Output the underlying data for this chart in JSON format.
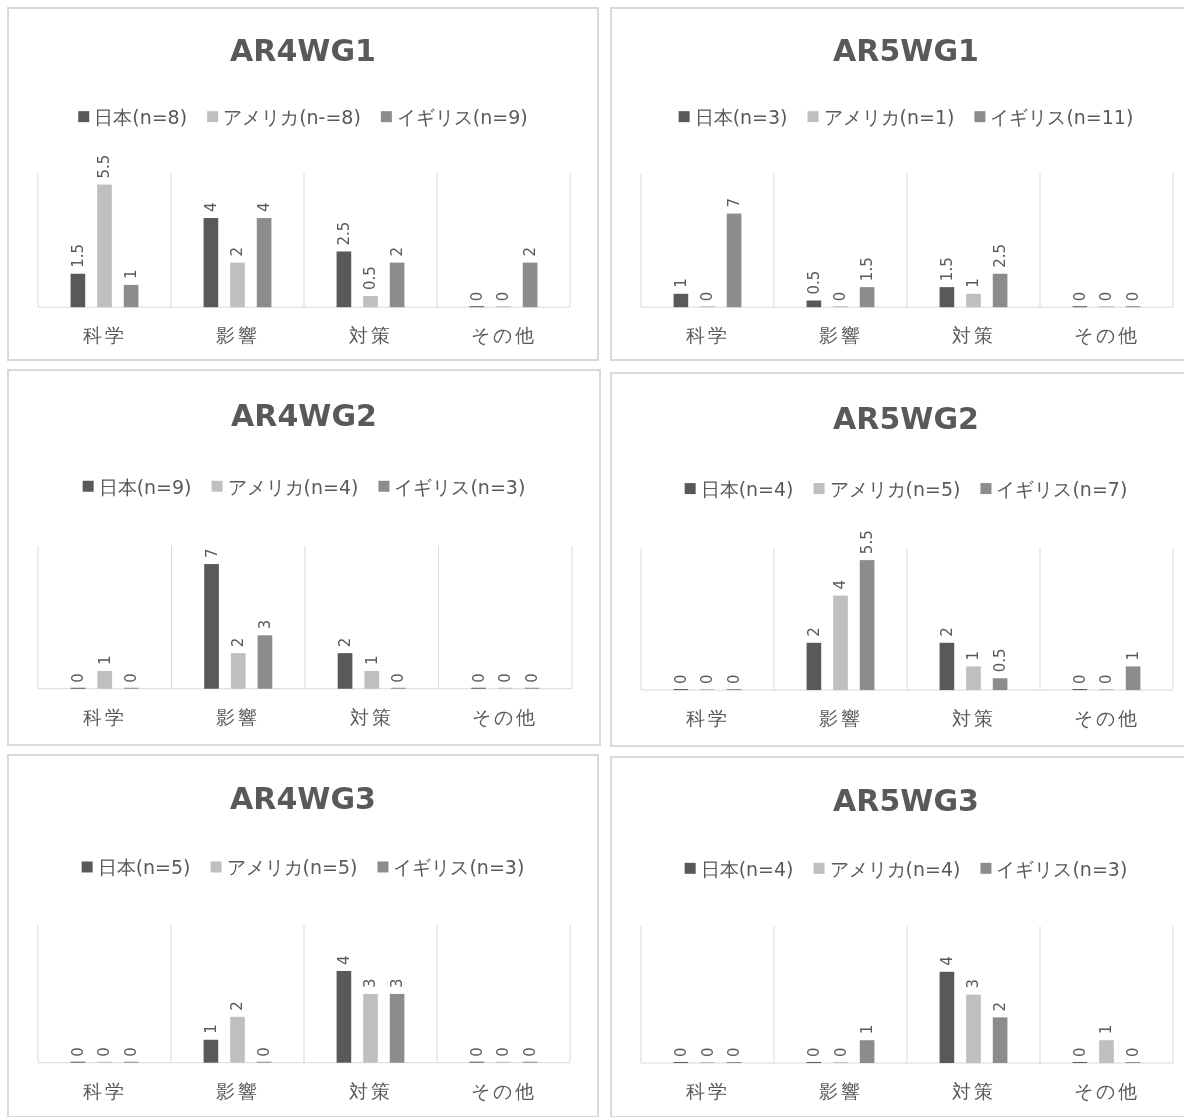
{
  "chart_data": [
    {
      "type": "bar",
      "title": "AR4WG1",
      "categories": [
        "科学",
        "影響",
        "対策",
        "その他"
      ],
      "ylim": [
        0,
        6
      ],
      "grid": "x",
      "legend": "top",
      "data_labels": true,
      "series": [
        {
          "name": "日本(n=8)",
          "color": "#595959",
          "values": [
            1.5,
            4,
            2.5,
            0
          ]
        },
        {
          "name": "アメリカ(n-=8)",
          "color": "#bfbfbf",
          "values": [
            5.5,
            2,
            0.5,
            0
          ]
        },
        {
          "name": "イギリス(n=9)",
          "color": "#8c8c8c",
          "values": [
            1,
            4,
            2,
            2
          ]
        }
      ]
    },
    {
      "type": "bar",
      "title": "AR5WG1",
      "categories": [
        "科学",
        "影響",
        "対策",
        "その他"
      ],
      "ylim": [
        0,
        10
      ],
      "grid": "x",
      "legend": "top",
      "data_labels": true,
      "series": [
        {
          "name": "日本(n=3)",
          "color": "#595959",
          "values": [
            1,
            0.5,
            1.5,
            0
          ]
        },
        {
          "name": "アメリカ(n=1)",
          "color": "#bfbfbf",
          "values": [
            0,
            0,
            1,
            0
          ]
        },
        {
          "name": "イギリス(n=11)",
          "color": "#8c8c8c",
          "values": [
            7,
            1.5,
            2.5,
            0
          ]
        }
      ]
    },
    {
      "type": "bar",
      "title": "AR4WG2",
      "categories": [
        "科学",
        "影響",
        "対策",
        "その他"
      ],
      "ylim": [
        0,
        8
      ],
      "grid": "x",
      "legend": "top",
      "data_labels": true,
      "series": [
        {
          "name": "日本(n=9)",
          "color": "#595959",
          "values": [
            0,
            7,
            2,
            0
          ]
        },
        {
          "name": "アメリカ(n=4)",
          "color": "#bfbfbf",
          "values": [
            1,
            2,
            1,
            0
          ]
        },
        {
          "name": "イギリス(n=3)",
          "color": "#8c8c8c",
          "values": [
            0,
            3,
            0,
            0
          ]
        }
      ]
    },
    {
      "type": "bar",
      "title": "AR5WG2",
      "categories": [
        "科学",
        "影響",
        "対策",
        "その他"
      ],
      "ylim": [
        0,
        6
      ],
      "grid": "x",
      "legend": "top",
      "data_labels": true,
      "series": [
        {
          "name": "日本(n=4)",
          "color": "#595959",
          "values": [
            0,
            2,
            2,
            0
          ]
        },
        {
          "name": "アメリカ(n=5)",
          "color": "#bfbfbf",
          "values": [
            0,
            4,
            1,
            0
          ]
        },
        {
          "name": "イギリス(n=7)",
          "color": "#8c8c8c",
          "values": [
            0,
            5.5,
            0.5,
            1
          ]
        }
      ]
    },
    {
      "type": "bar",
      "title": "AR4WG3",
      "categories": [
        "科学",
        "影響",
        "対策",
        "その他"
      ],
      "ylim": [
        0,
        6
      ],
      "grid": "x",
      "legend": "top",
      "data_labels": true,
      "series": [
        {
          "name": "日本(n=5)",
          "color": "#595959",
          "values": [
            0,
            1,
            4,
            0
          ]
        },
        {
          "name": "アメリカ(n=5)",
          "color": "#bfbfbf",
          "values": [
            0,
            2,
            3,
            0
          ]
        },
        {
          "name": "イギリス(n=3)",
          "color": "#8c8c8c",
          "values": [
            0,
            0,
            3,
            0
          ]
        }
      ]
    },
    {
      "type": "bar",
      "title": "AR5WG3",
      "categories": [
        "科学",
        "影響",
        "対策",
        "その他"
      ],
      "ylim": [
        0,
        6
      ],
      "grid": "x",
      "legend": "top",
      "data_labels": true,
      "series": [
        {
          "name": "日本(n=4)",
          "color": "#595959",
          "values": [
            0,
            0,
            4,
            0
          ]
        },
        {
          "name": "アメリカ(n=4)",
          "color": "#bfbfbf",
          "values": [
            0,
            0,
            3,
            1
          ]
        },
        {
          "name": "イギリス(n=3)",
          "color": "#8c8c8c",
          "values": [
            0,
            1,
            2,
            0
          ]
        }
      ]
    }
  ]
}
